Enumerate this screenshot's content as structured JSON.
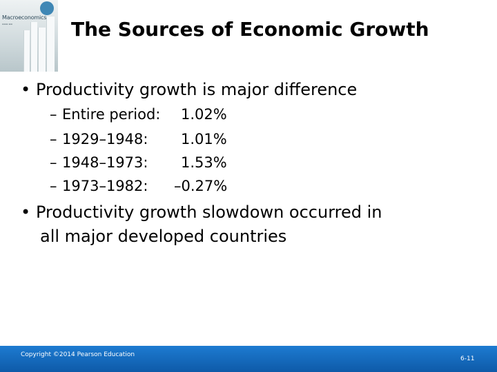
{
  "cover": {
    "title": "Macroeconomics",
    "accent_color": "#3f87b5"
  },
  "slide": {
    "title": "The Sources of Economic Growth",
    "bullets": [
      {
        "text": "Productivity growth is major difference",
        "sub": [
          {
            "label": "Entire period:",
            "value": "1.02%"
          },
          {
            "label": "1929–1948:",
            "value": "1.01%"
          },
          {
            "label": "1948–1973:",
            "value": "1.53%"
          },
          {
            "label": "1973–1982:",
            "value": "–0.27%"
          }
        ]
      },
      {
        "line1": "Productivity growth slowdown occurred in",
        "line2": "all major developed countries"
      }
    ]
  },
  "footer": {
    "copyright": "Copyright ©2014 Pearson Education",
    "page": "6-11",
    "bar_color": "#1470c4"
  }
}
